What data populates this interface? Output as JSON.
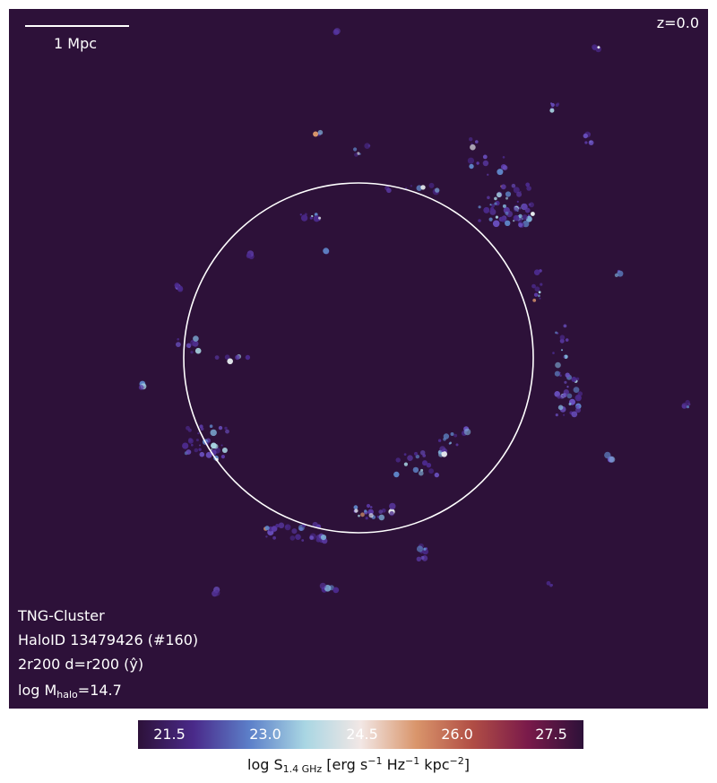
{
  "image": {
    "background_color": "#2d1139",
    "circle_color": "#ffffff",
    "scale_bar_label": "1 Mpc",
    "redshift_label": "z=0.0",
    "labels": {
      "simulation": "TNG-Cluster",
      "halo_id": "HaloID 13479426 (#160)",
      "projection": "2r200 d=r200 (ŷ)",
      "mass_prefix": "log M",
      "mass_subscript": "halo",
      "mass_value": "=14.7"
    }
  },
  "colorbar": {
    "ticks": [
      "21.5",
      "23.0",
      "24.5",
      "26.0",
      "27.5"
    ],
    "colors": [
      "#2d1139",
      "#4a2a8a",
      "#5c7fc9",
      "#a9d6e3",
      "#f2e7e5",
      "#d9956b",
      "#b14e45",
      "#7a1a4a",
      "#2d1139"
    ],
    "label_prefix": "log S",
    "label_subscript": "1.4 GHz",
    "label_units_1": " [erg s",
    "label_sup_1": "−1",
    "label_units_2": " Hz",
    "label_sup_2": "−1",
    "label_units_3": " kpc",
    "label_sup_3": "−2",
    "label_units_4": "]"
  }
}
